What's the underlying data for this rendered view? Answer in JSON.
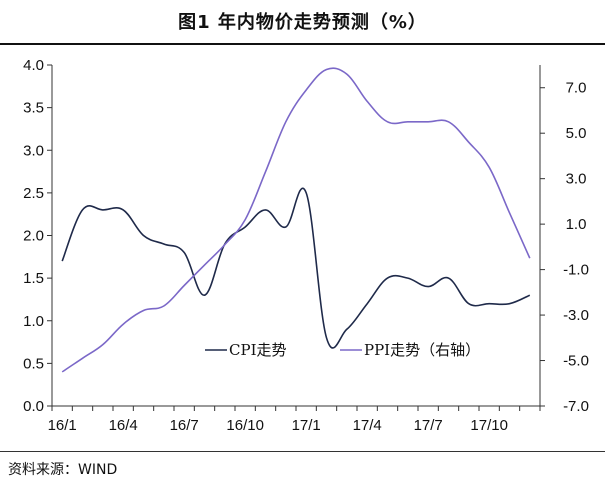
{
  "title": "图1  年内物价走势预测（%）",
  "source": "资料来源：WIND",
  "watermark": "",
  "chart_data": {
    "type": "line",
    "x": [
      "16/1",
      "16/2",
      "16/3",
      "16/4",
      "16/5",
      "16/6",
      "16/7",
      "16/8",
      "16/9",
      "16/10",
      "16/11",
      "16/12",
      "17/1",
      "17/2",
      "17/3",
      "17/4",
      "17/5",
      "17/6",
      "17/7",
      "17/8",
      "17/9",
      "17/10",
      "17/11",
      "17/12"
    ],
    "x_tick_labels": [
      "16/1",
      "16/4",
      "16/7",
      "16/10",
      "17/1",
      "17/4",
      "17/7",
      "17/10"
    ],
    "left_axis": {
      "ylim": [
        0.0,
        4.0
      ],
      "ticks": [
        "0.0",
        "0.5",
        "1.0",
        "1.5",
        "2.0",
        "2.5",
        "3.0",
        "3.5",
        "4.0"
      ]
    },
    "right_axis": {
      "ylim": [
        -7.0,
        8.0
      ],
      "ticks": [
        "-7.0",
        "-5.0",
        "-3.0",
        "-1.0",
        "1.0",
        "3.0",
        "5.0",
        "7.0"
      ]
    },
    "series": [
      {
        "name": "CPI走势",
        "axis": "left",
        "color": "#1f2a4a",
        "values": [
          1.7,
          2.3,
          2.3,
          2.3,
          2.0,
          1.9,
          1.8,
          1.3,
          1.9,
          2.1,
          2.3,
          2.1,
          2.5,
          0.8,
          0.9,
          1.2,
          1.5,
          1.5,
          1.4,
          1.5,
          1.2,
          1.2,
          1.2,
          1.3
        ]
      },
      {
        "name": "PPI走势（右轴）",
        "axis": "right",
        "color": "#7b68c8",
        "values": [
          -5.5,
          -4.9,
          -4.3,
          -3.4,
          -2.8,
          -2.6,
          -1.7,
          -0.8,
          0.1,
          1.2,
          3.3,
          5.5,
          6.9,
          7.8,
          7.6,
          6.4,
          5.5,
          5.5,
          5.5,
          5.5,
          4.6,
          3.5,
          1.5,
          -0.5
        ]
      }
    ],
    "legend": "center-bottom"
  }
}
